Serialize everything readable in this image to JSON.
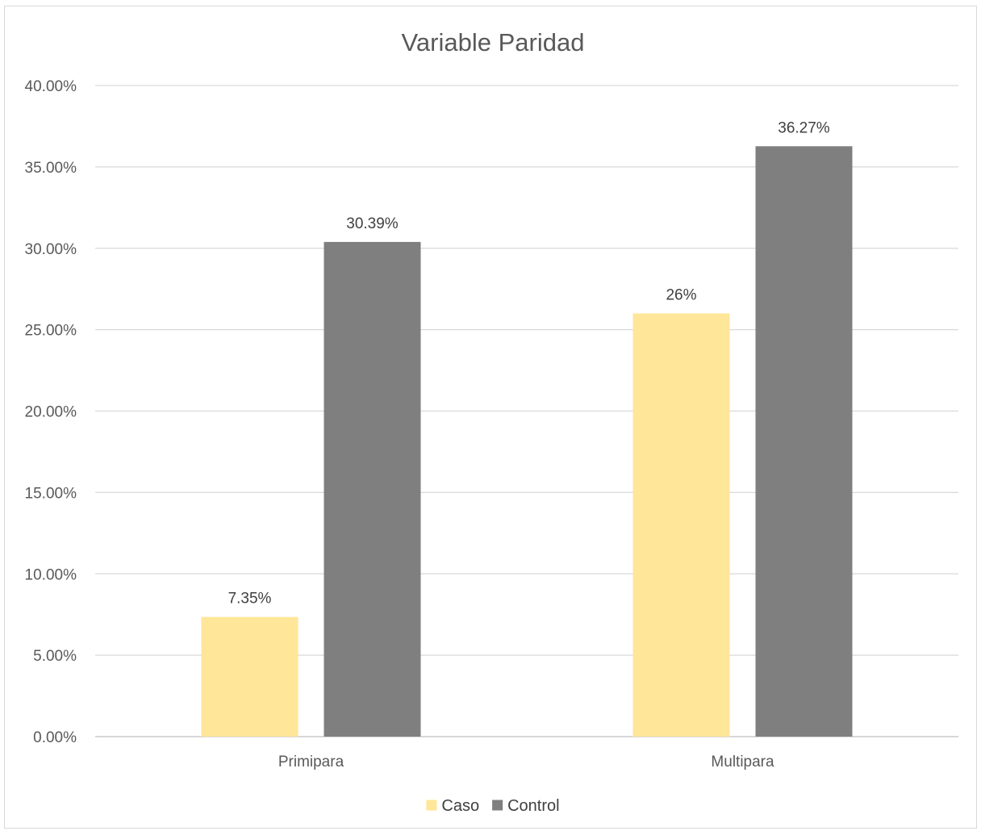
{
  "chart_data": {
    "type": "bar",
    "title": "Variable Paridad",
    "categories": [
      "Primipara",
      "Multipara"
    ],
    "series": [
      {
        "name": "Caso",
        "color": "#ffe699",
        "values": [
          7.35,
          26.0
        ],
        "labels": [
          "7.35%",
          "26%"
        ]
      },
      {
        "name": "Control",
        "color": "#7f7f7f",
        "values": [
          30.39,
          36.27
        ],
        "labels": [
          "30.39%",
          "36.27%"
        ]
      }
    ],
    "ylim": [
      0,
      40
    ],
    "ytick_step": 5,
    "ytick_labels": [
      "0.00%",
      "5.00%",
      "10.00%",
      "15.00%",
      "20.00%",
      "25.00%",
      "30.00%",
      "35.00%",
      "40.00%"
    ],
    "xlabel": "",
    "ylabel": "",
    "grid": true,
    "legend_position": "bottom"
  }
}
